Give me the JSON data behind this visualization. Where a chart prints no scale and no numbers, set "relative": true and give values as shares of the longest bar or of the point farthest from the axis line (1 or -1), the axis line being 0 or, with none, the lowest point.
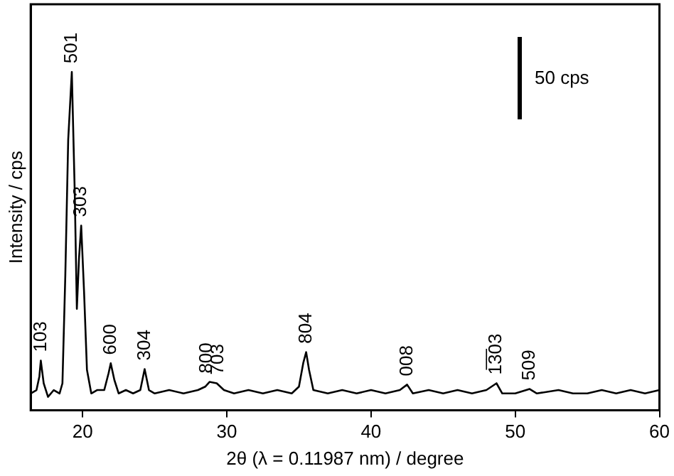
{
  "chart_data": {
    "type": "line",
    "xlabel": "2θ (λ = 0.11987 nm) / degree",
    "ylabel": "Intensity / cps",
    "relative": true,
    "xlim": [
      16.4,
      60
    ],
    "xticks": [
      20,
      30,
      40,
      50,
      60
    ],
    "grid": false,
    "legend": false,
    "marker": "none",
    "line_style": "solid",
    "series": [
      {
        "color": "#000000",
        "x": [
          16.4,
          16.8,
          17.0,
          17.1,
          17.3,
          17.6,
          18.0,
          18.4,
          18.6,
          18.8,
          19.0,
          19.25,
          19.45,
          19.6,
          19.75,
          19.9,
          20.1,
          20.3,
          20.6,
          21.0,
          21.5,
          21.8,
          21.95,
          22.2,
          22.5,
          23.0,
          23.5,
          24.0,
          24.3,
          24.6,
          25.0,
          26.0,
          27.0,
          28.0,
          28.5,
          28.8,
          29.3,
          29.8,
          30.5,
          31.5,
          32.5,
          33.5,
          34.5,
          35.0,
          35.3,
          35.5,
          35.7,
          36.0,
          37.0,
          38.0,
          39.0,
          40.0,
          41.0,
          42.0,
          42.5,
          42.9,
          44.0,
          45.0,
          46.0,
          47.0,
          48.0,
          48.7,
          49.1,
          50.0,
          51.0,
          51.5,
          53.0,
          54.0,
          55.0,
          56.0,
          57.0,
          58.0,
          59.0,
          60.0
        ],
        "values": [
          0.05,
          0.06,
          0.1,
          0.147,
          0.08,
          0.04,
          0.06,
          0.05,
          0.08,
          0.4,
          0.8,
          1.0,
          0.65,
          0.3,
          0.45,
          0.546,
          0.35,
          0.12,
          0.05,
          0.06,
          0.06,
          0.11,
          0.139,
          0.09,
          0.05,
          0.06,
          0.05,
          0.06,
          0.122,
          0.06,
          0.05,
          0.06,
          0.05,
          0.06,
          0.07,
          0.084,
          0.08,
          0.06,
          0.05,
          0.06,
          0.05,
          0.06,
          0.05,
          0.07,
          0.14,
          0.172,
          0.12,
          0.06,
          0.05,
          0.06,
          0.05,
          0.06,
          0.05,
          0.06,
          0.076,
          0.05,
          0.06,
          0.05,
          0.06,
          0.05,
          0.06,
          0.08,
          0.05,
          0.05,
          0.063,
          0.05,
          0.06,
          0.05,
          0.05,
          0.06,
          0.05,
          0.06,
          0.05,
          0.06
        ]
      }
    ],
    "annotations": [
      {
        "text": "103",
        "x": 17.1,
        "y": 0.147
      },
      {
        "text": "501",
        "x": 19.25,
        "y": 1.0
      },
      {
        "text": "303",
        "x": 19.9,
        "y": 0.546
      },
      {
        "text": "600",
        "x": 21.95,
        "y": 0.139
      },
      {
        "text": "304",
        "x": 24.3,
        "y": 0.122
      },
      {
        "text": "800",
        "x": 28.6,
        "y": 0.084
      },
      {
        "text": "703",
        "x": 29.4,
        "y": 0.08
      },
      {
        "text": "804",
        "x": 35.5,
        "y": 0.172
      },
      {
        "text": "008",
        "x": 42.5,
        "y": 0.076
      },
      {
        "text": "1̅3̅03",
        "x": 48.7,
        "y": 0.08
      },
      {
        "text": "509",
        "x": 51.0,
        "y": 0.063
      },
      "50 cps"
    ]
  }
}
